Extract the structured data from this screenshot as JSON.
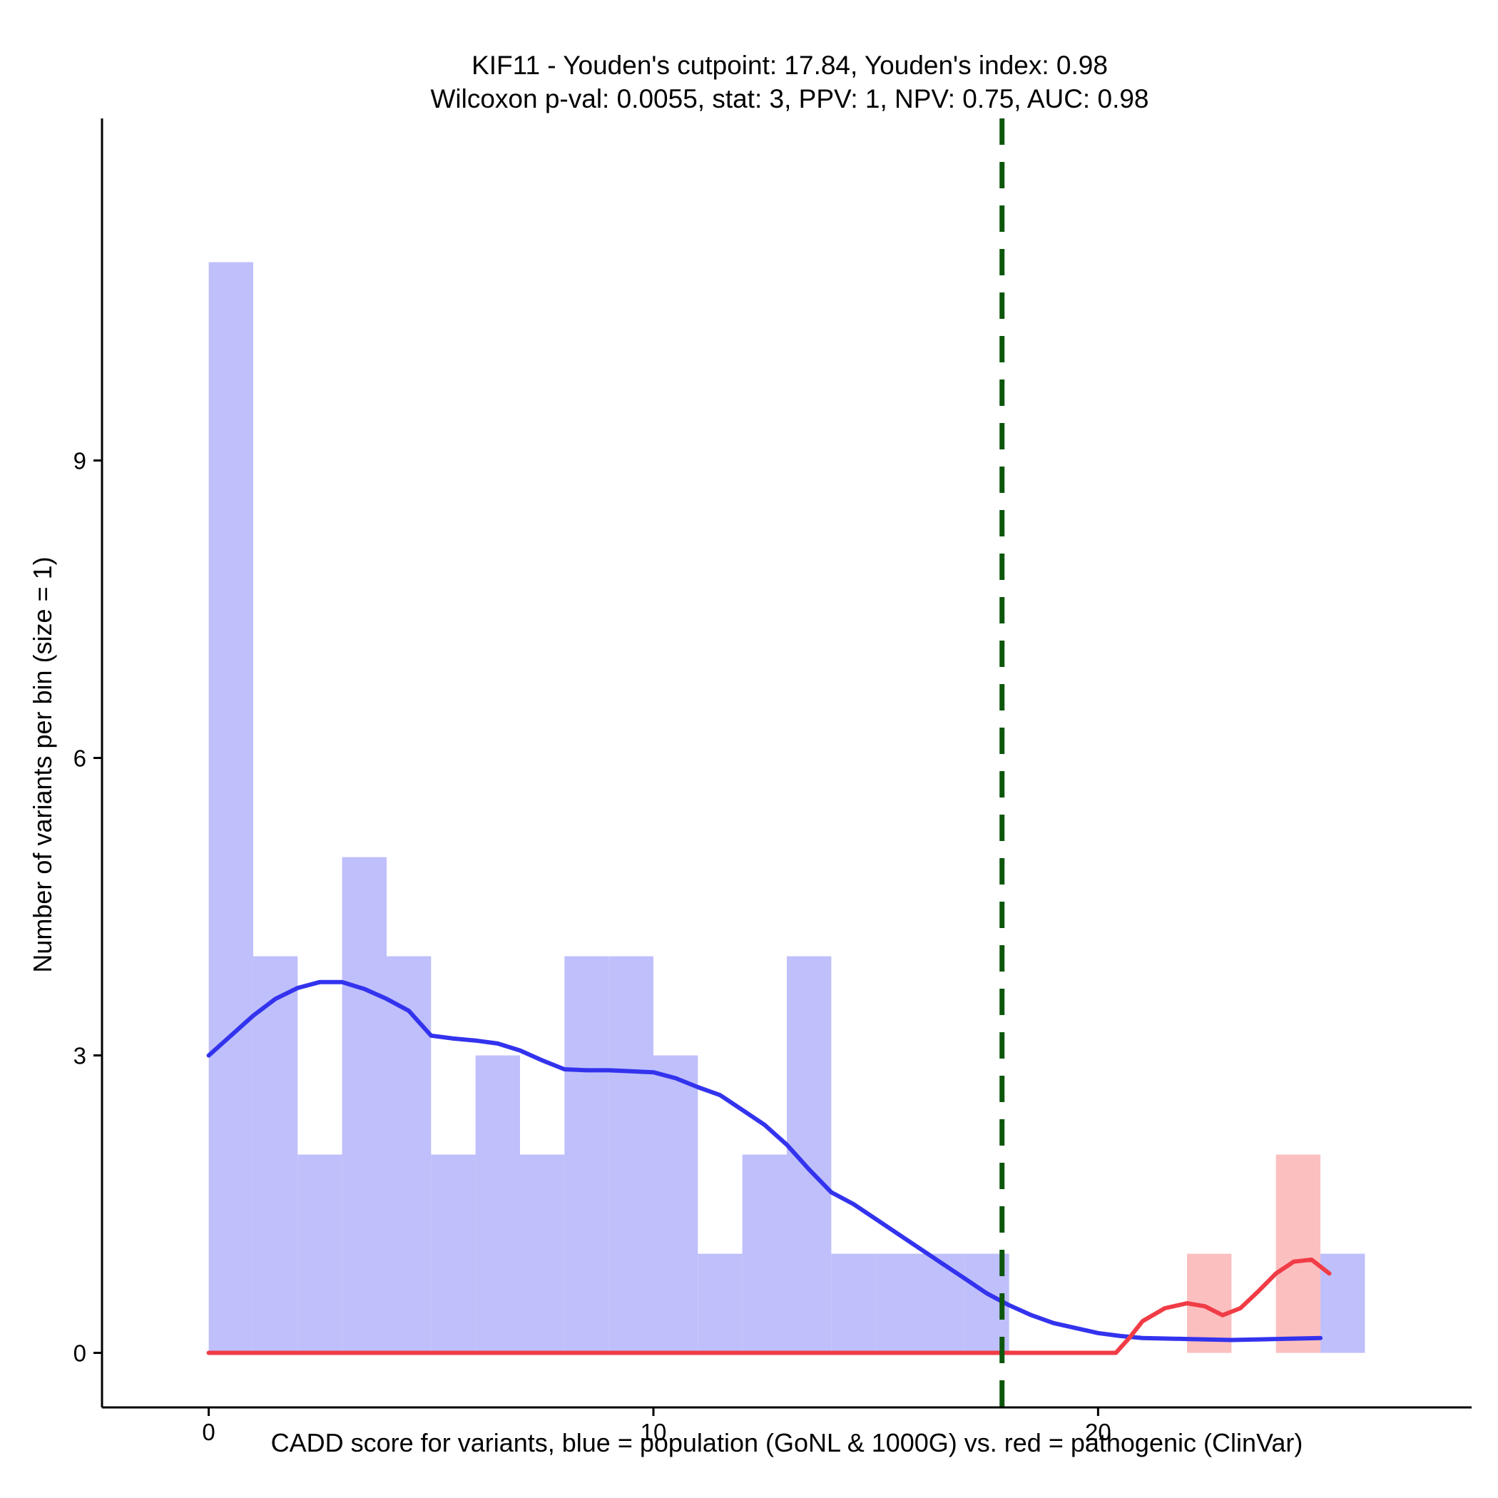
{
  "chart_data": {
    "type": "bar",
    "title_line1": "KIF11 - Youden's cutpoint: 17.84, Youden's index: 0.98",
    "title_line2": "Wilcoxon p-val: 0.0055, stat: 3, PPV: 1, NPV: 0.75, AUC: 0.98",
    "xlabel": "CADD score for variants, blue = population (GoNL & 1000G) vs. red = pathogenic (ClinVar)",
    "ylabel": "Number of variants per bin (size = 1)",
    "xlim": [
      -2.4,
      28.4
    ],
    "ylim": [
      -0.55,
      12.45
    ],
    "xticks": [
      0,
      10,
      20
    ],
    "yticks": [
      0,
      3,
      6,
      9
    ],
    "bin_width": 1,
    "cutpoint": 17.84,
    "colors": {
      "population": "#bfbffc",
      "pathogenic": "#fcbfbf",
      "population_line": "#3333ee",
      "pathogenic_line": "#f03c46",
      "cutpoint_line": "#0d570d"
    },
    "series": [
      {
        "key": "population",
        "bins": [
          {
            "x0": 0,
            "x1": 1,
            "count": 11
          },
          {
            "x0": 1,
            "x1": 2,
            "count": 4
          },
          {
            "x0": 2,
            "x1": 3,
            "count": 2
          },
          {
            "x0": 3,
            "x1": 4,
            "count": 5
          },
          {
            "x0": 4,
            "x1": 5,
            "count": 4
          },
          {
            "x0": 5,
            "x1": 6,
            "count": 2
          },
          {
            "x0": 6,
            "x1": 7,
            "count": 3
          },
          {
            "x0": 7,
            "x1": 8,
            "count": 2
          },
          {
            "x0": 8,
            "x1": 9,
            "count": 4
          },
          {
            "x0": 9,
            "x1": 10,
            "count": 4
          },
          {
            "x0": 10,
            "x1": 11,
            "count": 3
          },
          {
            "x0": 11,
            "x1": 12,
            "count": 1
          },
          {
            "x0": 12,
            "x1": 13,
            "count": 2
          },
          {
            "x0": 13,
            "x1": 14,
            "count": 4
          },
          {
            "x0": 14,
            "x1": 15,
            "count": 1
          },
          {
            "x0": 15,
            "x1": 16,
            "count": 1
          },
          {
            "x0": 16,
            "x1": 17,
            "count": 1
          },
          {
            "x0": 17,
            "x1": 18,
            "count": 1
          },
          {
            "x0": 25,
            "x1": 26,
            "count": 1
          }
        ],
        "curve": [
          [
            0,
            3.0
          ],
          [
            0.5,
            3.2
          ],
          [
            1,
            3.4
          ],
          [
            1.5,
            3.57
          ],
          [
            2,
            3.68
          ],
          [
            2.5,
            3.74
          ],
          [
            3,
            3.74
          ],
          [
            3.5,
            3.67
          ],
          [
            4,
            3.57
          ],
          [
            4.5,
            3.45
          ],
          [
            5,
            3.2
          ],
          [
            5.5,
            3.17
          ],
          [
            6,
            3.15
          ],
          [
            6.5,
            3.12
          ],
          [
            7,
            3.05
          ],
          [
            7.5,
            2.95
          ],
          [
            8,
            2.86
          ],
          [
            8.5,
            2.85
          ],
          [
            9,
            2.85
          ],
          [
            9.5,
            2.84
          ],
          [
            10,
            2.83
          ],
          [
            10.5,
            2.77
          ],
          [
            11,
            2.68
          ],
          [
            11.5,
            2.6
          ],
          [
            12,
            2.45
          ],
          [
            12.5,
            2.3
          ],
          [
            13,
            2.1
          ],
          [
            13.5,
            1.85
          ],
          [
            14,
            1.62
          ],
          [
            14.5,
            1.5
          ],
          [
            15,
            1.35
          ],
          [
            15.5,
            1.2
          ],
          [
            16,
            1.05
          ],
          [
            16.5,
            0.9
          ],
          [
            17,
            0.75
          ],
          [
            17.5,
            0.6
          ],
          [
            18,
            0.48
          ],
          [
            18.5,
            0.38
          ],
          [
            19,
            0.3
          ],
          [
            19.5,
            0.25
          ],
          [
            20,
            0.2
          ],
          [
            20.5,
            0.17
          ],
          [
            21,
            0.15
          ],
          [
            22,
            0.14
          ],
          [
            23,
            0.13
          ],
          [
            24,
            0.14
          ],
          [
            25,
            0.15
          ]
        ]
      },
      {
        "key": "pathogenic",
        "bins": [
          {
            "x0": 22,
            "x1": 23,
            "count": 1
          },
          {
            "x0": 24,
            "x1": 25,
            "count": 2
          }
        ],
        "curve": [
          [
            0,
            0
          ],
          [
            5,
            0
          ],
          [
            10,
            0
          ],
          [
            15,
            0
          ],
          [
            20,
            0
          ],
          [
            20.4,
            0
          ],
          [
            20.7,
            0.15
          ],
          [
            21,
            0.32
          ],
          [
            21.5,
            0.45
          ],
          [
            22,
            0.5
          ],
          [
            22.4,
            0.47
          ],
          [
            22.8,
            0.38
          ],
          [
            23.2,
            0.45
          ],
          [
            23.6,
            0.62
          ],
          [
            24,
            0.8
          ],
          [
            24.4,
            0.92
          ],
          [
            24.8,
            0.94
          ],
          [
            25.2,
            0.8
          ]
        ]
      }
    ]
  }
}
